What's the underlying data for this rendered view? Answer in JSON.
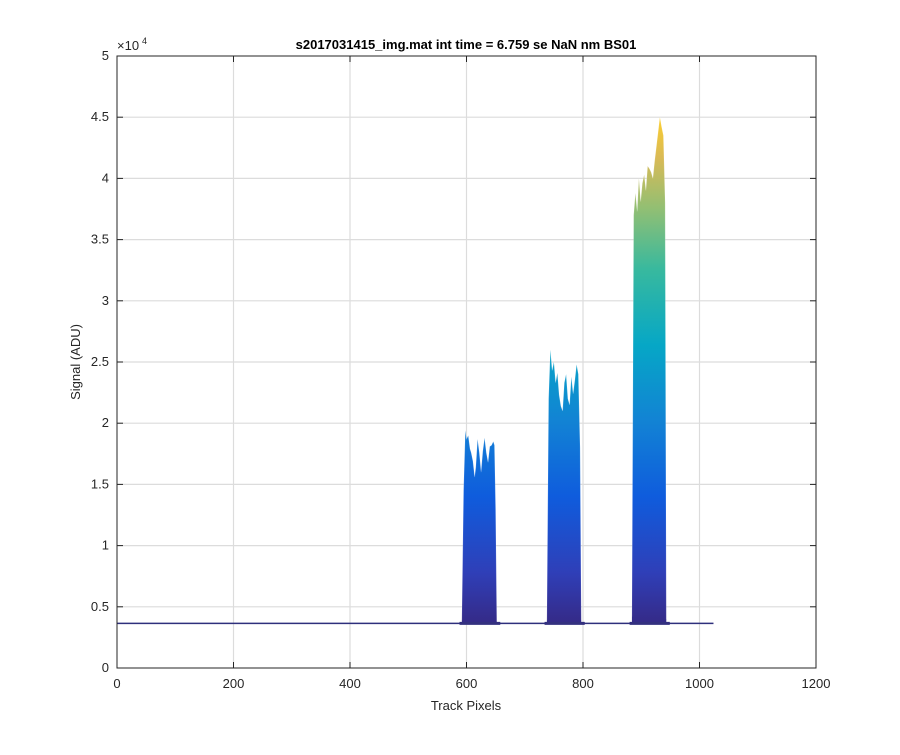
{
  "chart_data": {
    "type": "area",
    "title": "s2017031415_img.mat int time = 6.759 se  NaN nm BS01",
    "xlabel": "Track Pixels",
    "ylabel": "Signal (ADU)",
    "xlim": [
      0,
      1200
    ],
    "ylim": [
      0,
      50000
    ],
    "x_ticks": [
      0,
      200,
      400,
      600,
      800,
      1000,
      1200
    ],
    "y_ticks": [
      0,
      5000,
      10000,
      15000,
      20000,
      25000,
      30000,
      35000,
      40000,
      45000,
      50000
    ],
    "y_tick_labels": [
      "0",
      "0.5",
      "1",
      "1.5",
      "2",
      "2.5",
      "3",
      "3.5",
      "4",
      "4.5",
      "5"
    ],
    "y_exponent_label": "×10",
    "y_exponent_power": "4",
    "grid": true,
    "colormap": "parula",
    "baseline": {
      "value": 3650,
      "x_range": [
        0,
        1024
      ]
    },
    "peaks": [
      {
        "x": [
          592,
          595,
          598,
          600,
          603,
          606,
          608,
          611,
          614,
          616,
          619,
          622,
          625,
          628,
          631,
          634,
          637,
          640,
          643,
          646,
          648,
          650,
          652
        ],
        "y": [
          3900,
          14500,
          19400,
          18700,
          19000,
          17900,
          17600,
          16900,
          15600,
          16400,
          18700,
          17600,
          16000,
          17700,
          18800,
          17600,
          16800,
          18100,
          18200,
          18500,
          18200,
          13000,
          3800
        ]
      },
      {
        "x": [
          738,
          741,
          744,
          747,
          750,
          753,
          756,
          759,
          762,
          765,
          768,
          771,
          774,
          777,
          780,
          783,
          786,
          789,
          792,
          795,
          797
        ],
        "y": [
          3900,
          22000,
          26000,
          24300,
          25000,
          23300,
          24100,
          22300,
          21400,
          21000,
          23300,
          24000,
          22000,
          21500,
          23800,
          22400,
          23500,
          24800,
          24000,
          18000,
          3900
        ]
      },
      {
        "x": [
          884,
          887,
          890,
          893,
          896,
          899,
          902,
          905,
          908,
          911,
          914,
          917,
          920,
          923,
          926,
          929,
          932,
          935,
          938,
          941,
          943
        ],
        "y": [
          4200,
          37000,
          38800,
          37300,
          40000,
          38100,
          39600,
          40300,
          39000,
          41000,
          40800,
          40500,
          40000,
          41400,
          42600,
          43800,
          45000,
          44200,
          43500,
          38000,
          4000
        ]
      }
    ]
  }
}
